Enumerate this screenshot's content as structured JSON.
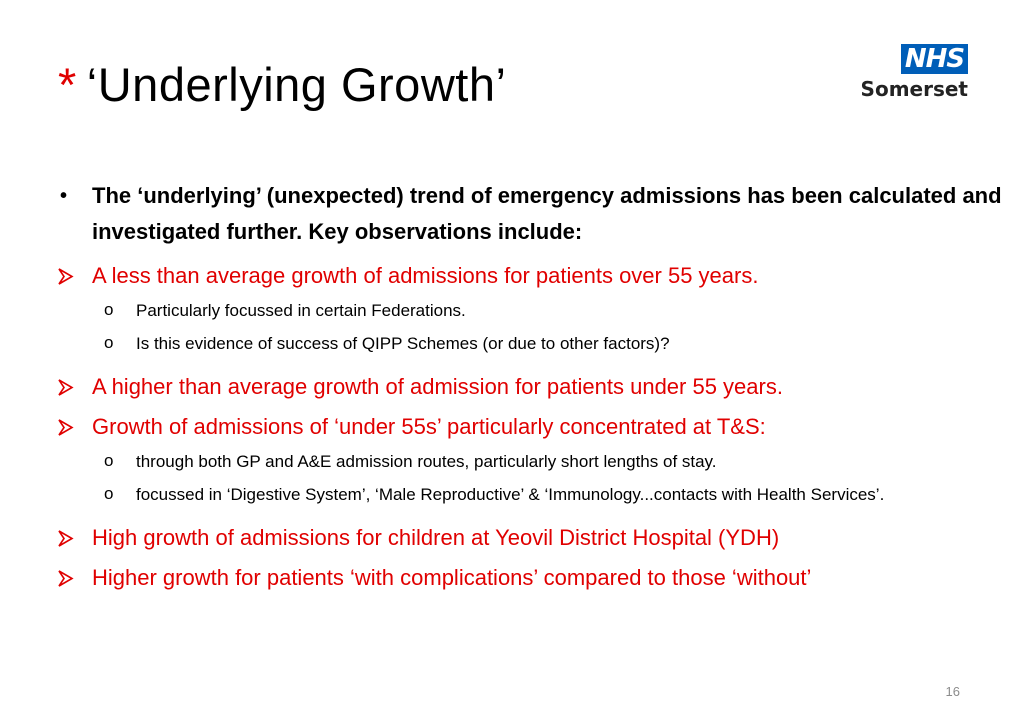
{
  "slide": {
    "title_asterisk": "*",
    "title": "‘Underlying Growth’",
    "page_number": "16"
  },
  "logo": {
    "brand": "NHS",
    "org": "Somerset",
    "brand_color": "#005eb8"
  },
  "colors": {
    "highlight": "#e00000",
    "text": "#000000"
  },
  "icons": {
    "main_bullet": "•",
    "arrow_bullet": "arrow-bullet-icon",
    "sub_bullet": "o"
  },
  "content": {
    "intro": "The ‘underlying’ (unexpected) trend of emergency admissions has been calculated and investigated further. Key observations include:",
    "observations": [
      {
        "text": "A less than average growth of admissions for patients over 55 years.",
        "sub": [
          "Particularly focussed in certain Federations.",
          "Is this evidence of success of QIPP Schemes (or due to other factors)?"
        ]
      },
      {
        "text": "A higher than average growth of admission for patients under 55 years.",
        "sub": []
      },
      {
        "text": "Growth of admissions of ‘under 55s’ particularly concentrated at T&S:",
        "sub": [
          "through both GP and A&E admission routes, particularly short lengths of stay.",
          " focussed in ‘Digestive System’, ‘Male Reproductive’ & ‘Immunology...contacts with Health Services’."
        ]
      },
      {
        "text": "High growth of admissions for children at Yeovil District Hospital (YDH)",
        "sub": []
      },
      {
        "text": "Higher growth for patients ‘with complications’ compared to those ‘without’",
        "sub": []
      }
    ]
  }
}
